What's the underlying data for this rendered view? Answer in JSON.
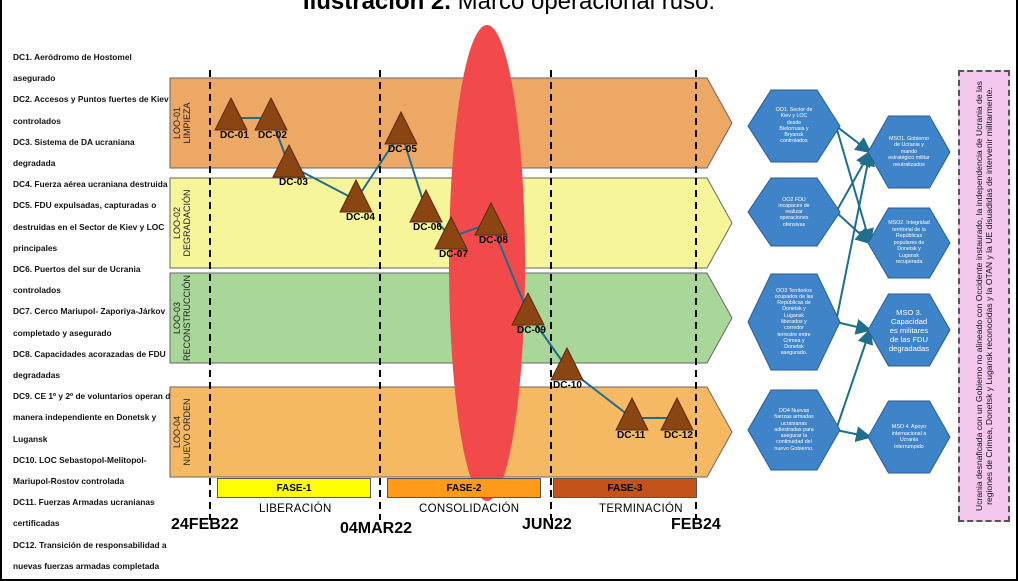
{
  "title": {
    "bold": "Ilustración 2.",
    "rest": " Marco operacional ruso."
  },
  "legend": [
    "DC1. Aeródromo de Hostomel",
    "asegurado",
    "DC2. Accesos y Puntos fuertes de Kiev",
    "controlados",
    "DC3. Sistema de DA ucraniana",
    "degradada",
    "DC4. Fuerza aérea ucraniana destruida",
    "DC5. FDU expulsadas, capturadas o",
    "destruidas en el Sector de Kiev y LOC",
    "principales",
    "DC6. Puertos del sur de Ucrania",
    "controlados",
    "DC7. Cerco Mariupol- Zaporiya-Járkov",
    "completado y asegurado",
    "DC8. Capacidades acorazadas de FDU",
    "degradadas",
    "DC9. CE 1º y 2º de voluntarios operan de",
    "manera independiente en Donetsk y",
    "Lugansk",
    "DC10. LOC Sebastopol-Melitopol-",
    "Mariupol-Rostov controlada",
    "DC11. Fuerzas Armadas ucranianas",
    "certificadas",
    "DC12. Transición de responsabilidad a",
    "nuevas fuerzas armadas completada"
  ],
  "loos": [
    {
      "id": "loo-01",
      "line1": "LOO-01",
      "line2": "LIMPIEZA",
      "color": "#eda866"
    },
    {
      "id": "loo-02",
      "line1": "LOO-02",
      "line2": "DEGRADACIÓN",
      "color": "#f7f59a"
    },
    {
      "id": "loo-03",
      "line1": "LOO-03",
      "line2": "RECONSTRUCCIÓN",
      "color": "#a9d79a"
    },
    {
      "id": "loo-04",
      "line1": "LOO-04",
      "line2": "NUEVO ORDEN",
      "color": "#f5b964"
    }
  ],
  "decisive_conditions": [
    "DC-01",
    "DC-02",
    "DC-03",
    "DC-04",
    "DC-05",
    "DC-06",
    "DC-07",
    "DC-08",
    "DC-09",
    "DC-10",
    "DC-11",
    "DC-12"
  ],
  "operational_objectives": [
    "OO1. Sector de Kiev y LOC desde Bielorrusia y Bryansk controlados",
    "OO2 FDU incapaces de realizar operaciones ofensivas",
    "OO3 Territorios ocupados de las Repúblicas de Donetsk y Lugansk liberados y corredor terrestre entre Crimea y Donetsk asegurado.",
    "OO4 Nuevas fuerzas armadas ucranianas adiestradas para asegurar la continuidad del nuevo Gobierno."
  ],
  "military_strategic_objectives": [
    "MSO1. Gobierno de Ucrania y mando estratégico militar neutralizados",
    "MSO2. Integridad territorial de la Repúblicas populares de Donetsk y Lugansk recuperada",
    "MSO 3. Capacidad es militares de las FDU degradadas",
    "MSO 4. Apoyo internacional a Ucrania interrumpido"
  ],
  "end_state": "Ucrania desnaficada con un Gobierno no alineado con Occidente instaurado, la independencia de Ucrania de las regiones de Crimea, Donetsk y Lugansk reconocidas y la OTAN y la UE disuadidas de intervenir militarmente.",
  "phases": [
    {
      "label": "FASE-1",
      "name": "LIBERACIÓN",
      "color": "#ffff00"
    },
    {
      "label": "FASE-2",
      "name": "CONSOLIDACIÓN",
      "color": "#ff9a1a"
    },
    {
      "label": "FASE-3",
      "name": "TERMINACIÓN",
      "color": "#c4521b"
    }
  ],
  "dates": [
    "24FEB22",
    "04MAR22",
    "JUN22",
    "FEB24"
  ],
  "colors": {
    "hexagon": "#3f83c9",
    "triangle": "#8b4513",
    "connector": "#1e6e8c",
    "center_of_gravity": "#f24a4a"
  }
}
